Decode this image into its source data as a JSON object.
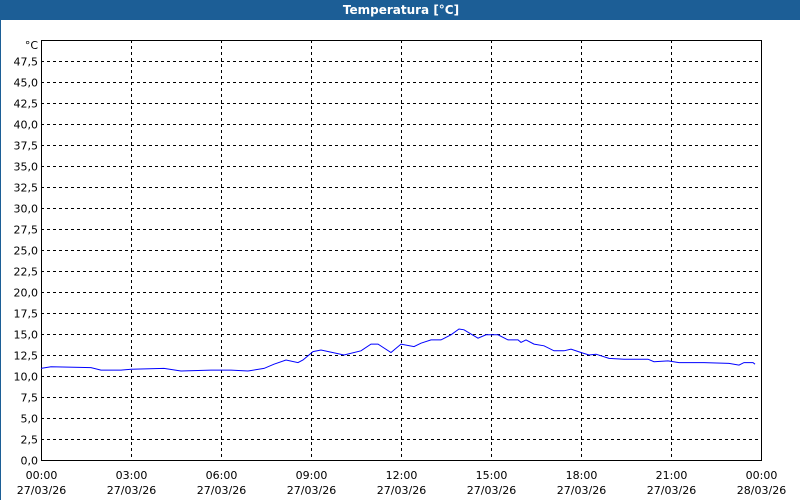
{
  "chart_data": {
    "type": "line",
    "title": "Temperatura [°C]",
    "ylabel": "°C",
    "ylim": [
      0,
      50
    ],
    "y_ticks": [
      "0,0",
      "2,5",
      "5,0",
      "7,5",
      "10,0",
      "12,5",
      "15,0",
      "17,5",
      "20,0",
      "22,5",
      "25,0",
      "27,5",
      "30,0",
      "32,5",
      "35,0",
      "37,5",
      "40,0",
      "42,5",
      "45,0",
      "47,5"
    ],
    "x_ticks": [
      {
        "time": "00:00",
        "date": "27/03/26"
      },
      {
        "time": "03:00",
        "date": "27/03/26"
      },
      {
        "time": "06:00",
        "date": "27/03/26"
      },
      {
        "time": "09:00",
        "date": "27/03/26"
      },
      {
        "time": "12:00",
        "date": "27/03/26"
      },
      {
        "time": "15:00",
        "date": "27/03/26"
      },
      {
        "time": "18:00",
        "date": "27/03/26"
      },
      {
        "time": "21:00",
        "date": "27/03/26"
      },
      {
        "time": "00:00",
        "date": "28/03/26"
      }
    ],
    "xlim": [
      "27/03/26 00:00",
      "28/03/26 00:00"
    ],
    "grid": true,
    "line_color": "#0000ff",
    "series": [
      {
        "x": [
          "00:00",
          "00:20",
          "01:40",
          "02:00",
          "02:40",
          "03:00",
          "04:06",
          "04:40",
          "05:40",
          "06:20",
          "06:54",
          "07:26",
          "07:46",
          "08:10",
          "08:34",
          "08:44",
          "09:04",
          "09:20",
          "10:06",
          "10:40",
          "11:00",
          "11:14",
          "11:40",
          "12:00",
          "12:26",
          "12:40",
          "13:00",
          "13:20",
          "13:40",
          "13:56",
          "14:06",
          "14:34",
          "14:50",
          "15:14",
          "15:34",
          "15:54",
          "16:00",
          "16:10",
          "16:26",
          "16:46",
          "17:06",
          "17:26",
          "17:40",
          "18:00",
          "18:16",
          "18:30",
          "18:56",
          "19:26",
          "20:14",
          "20:26",
          "20:54",
          "21:16",
          "22:06",
          "22:56",
          "23:16",
          "23:26",
          "23:44",
          "23:48"
        ],
        "values": [
          10.9,
          11.1,
          11.0,
          10.7,
          10.7,
          10.8,
          10.9,
          10.6,
          10.7,
          10.7,
          10.6,
          10.9,
          11.4,
          11.9,
          11.6,
          11.9,
          12.9,
          13.1,
          12.5,
          13.0,
          13.8,
          13.8,
          12.8,
          13.8,
          13.5,
          13.9,
          14.3,
          14.3,
          14.9,
          15.6,
          15.5,
          14.5,
          14.9,
          14.9,
          14.3,
          14.3,
          14.0,
          14.3,
          13.8,
          13.6,
          13.0,
          13.0,
          13.2,
          12.8,
          12.5,
          12.6,
          12.1,
          12.0,
          12.0,
          11.7,
          11.8,
          11.6,
          11.6,
          11.5,
          11.3,
          11.6,
          11.6,
          11.4
        ]
      }
    ]
  }
}
